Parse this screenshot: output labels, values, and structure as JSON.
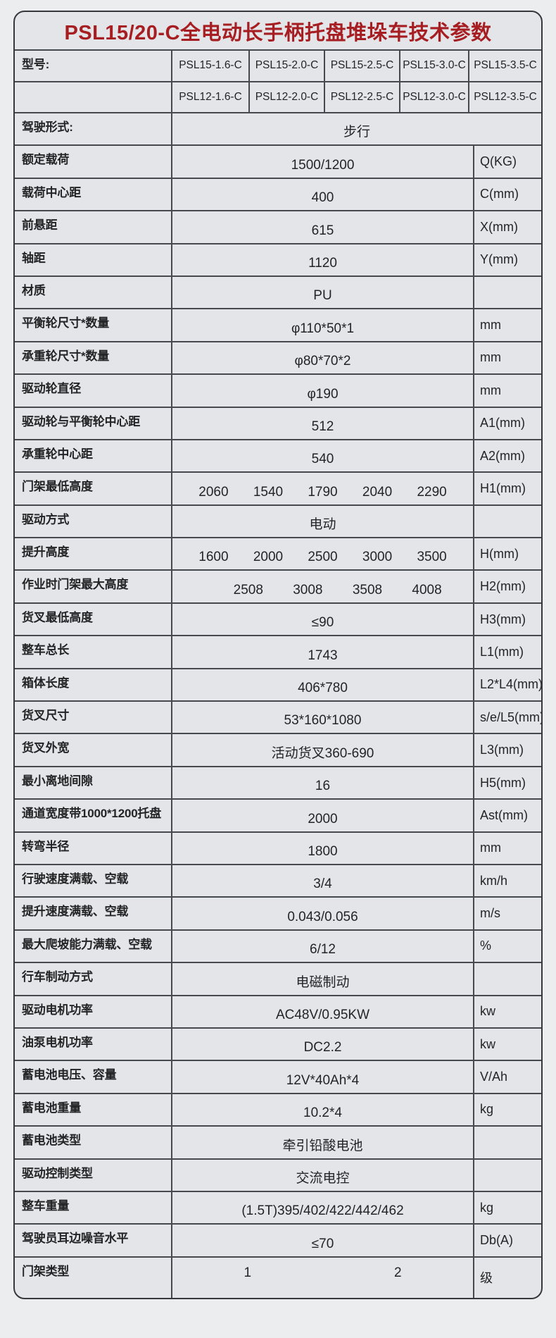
{
  "title": "PSL15/20-C全电动长手柄托盘堆垛车技术参数",
  "colors": {
    "title_red": "#a61e22",
    "grid_line": "#46494e",
    "cell_background": "#e3e5e8"
  },
  "table": {
    "rows": [
      {
        "type": "models",
        "label": "型号:",
        "cells": [
          "PSL15-1.6-C",
          "PSL15-2.0-C",
          "PSL15-2.5-C",
          "PSL15-3.0-C",
          "PSL15-3.5-C"
        ]
      },
      {
        "type": "models",
        "label": "",
        "cells": [
          "PSL12-1.6-C",
          "PSL12-2.0-C",
          "PSL12-2.5-C",
          "PSL12-3.0-C",
          "PSL12-3.5-C"
        ]
      },
      {
        "type": "full",
        "label": "驾驶形式:",
        "value": "步行"
      },
      {
        "type": "single",
        "label": "额定载荷",
        "value": "1500/1200",
        "unit": "Q(KG)"
      },
      {
        "type": "single",
        "label": "载荷中心距",
        "value": "400",
        "unit": "C(mm)"
      },
      {
        "type": "single",
        "label": "前悬距",
        "value": "615",
        "unit": "X(mm)"
      },
      {
        "type": "single",
        "label": "轴距",
        "value": "1120",
        "unit": "Y(mm)"
      },
      {
        "type": "single",
        "label": "材质",
        "value": "PU",
        "unit": ""
      },
      {
        "type": "single",
        "label": "平衡轮尺寸*数量",
        "value": "φ110*50*1",
        "unit": "mm"
      },
      {
        "type": "single",
        "label": "承重轮尺寸*数量",
        "value": "φ80*70*2",
        "unit": "mm"
      },
      {
        "type": "single",
        "label": "驱动轮直径",
        "value": "φ190",
        "unit": "mm"
      },
      {
        "type": "single",
        "label": "驱动轮与平衡轮中心距",
        "value": "512",
        "unit": "A1(mm)"
      },
      {
        "type": "single",
        "label": "承重轮中心距",
        "value": "540",
        "unit": "A2(mm)"
      },
      {
        "type": "multi",
        "label": "门架最低高度",
        "values": [
          "2060",
          "1540",
          "1790",
          "2040",
          "2290"
        ],
        "unit": "H1(mm)"
      },
      {
        "type": "single",
        "label": "驱动方式",
        "value": "电动",
        "unit": ""
      },
      {
        "type": "multi",
        "label": "提升高度",
        "values": [
          "1600",
          "2000",
          "2500",
          "3000",
          "3500"
        ],
        "unit": "H(mm)"
      },
      {
        "type": "multi",
        "label": "作业时门架最大高度",
        "values": [
          "",
          "2508",
          "3008",
          "3508",
          "4008"
        ],
        "unit": "H2(mm)"
      },
      {
        "type": "single",
        "label": "货叉最低高度",
        "value": "≤90",
        "unit": "H3(mm)"
      },
      {
        "type": "single",
        "label": "整车总长",
        "value": "1743",
        "unit": "L1(mm)"
      },
      {
        "type": "single",
        "label": "箱体长度",
        "value": "406*780",
        "unit": "L2*L4(mm)"
      },
      {
        "type": "single",
        "label": "货叉尺寸",
        "value": "53*160*1080",
        "unit": "s/e/L5(mm)"
      },
      {
        "type": "single",
        "label": "货叉外宽",
        "value": "活动货叉360-690",
        "unit": "L3(mm)"
      },
      {
        "type": "single",
        "label": "最小离地间隙",
        "value": "16",
        "unit": "H5(mm)"
      },
      {
        "type": "single",
        "label": "通道宽度带1000*1200托盘",
        "value": "2000",
        "unit": "Ast(mm)"
      },
      {
        "type": "single",
        "label": "转弯半径",
        "value": "1800",
        "unit": "mm"
      },
      {
        "type": "single",
        "label": "行驶速度满载、空载",
        "value": "3/4",
        "unit": "km/h"
      },
      {
        "type": "single",
        "label": "提升速度满载、空载",
        "value": "0.043/0.056",
        "unit": "m/s"
      },
      {
        "type": "single",
        "label": "最大爬坡能力满载、空载",
        "value": "6/12",
        "unit": "%"
      },
      {
        "type": "single",
        "label": "行车制动方式",
        "value": "电磁制动",
        "unit": ""
      },
      {
        "type": "single",
        "label": "驱动电机功率",
        "value": "AC48V/0.95KW",
        "unit": "kw"
      },
      {
        "type": "single",
        "label": "油泵电机功率",
        "value": "DC2.2",
        "unit": "kw"
      },
      {
        "type": "single",
        "label": "蓄电池电压、容量",
        "value": "12V*40Ah*4",
        "unit": "V/Ah"
      },
      {
        "type": "single",
        "label": "蓄电池重量",
        "value": "10.2*4",
        "unit": "kg"
      },
      {
        "type": "single",
        "label": "蓄电池类型",
        "value": "牵引铅酸电池",
        "unit": ""
      },
      {
        "type": "single",
        "label": "驱动控制类型",
        "value": "交流电控",
        "unit": ""
      },
      {
        "type": "single",
        "label": "整车重量",
        "value": "(1.5T)395/402/422/442/462",
        "unit": "kg"
      },
      {
        "type": "single",
        "label": "驾驶员耳边噪音水平",
        "value": "≤70",
        "unit": "Db(A)"
      },
      {
        "type": "pair",
        "label": "门架类型",
        "values": [
          "1",
          "2"
        ],
        "unit": "级",
        "tall": true
      }
    ]
  }
}
